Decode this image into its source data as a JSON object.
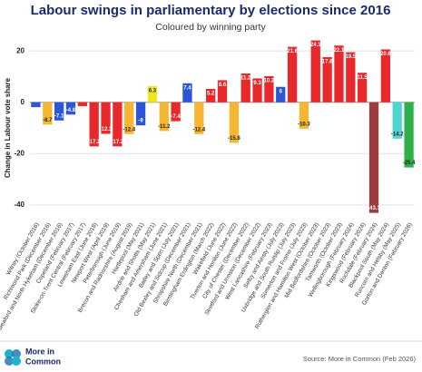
{
  "chart_data": {
    "type": "bar",
    "title": "Labour swings in parliamentary by elections since 2016",
    "subtitle": "Coloured by winning party",
    "y_label": "Change in Labour vote share",
    "source": "Source: More in Common (Feb 2026)",
    "logo": [
      "More in",
      "Common"
    ],
    "categories": [
      "Witney (October 2016)",
      "Richmond Park (December 2016)",
      "Sleaford and North Hykeham (December 2016)",
      "Copeland (February 2017)",
      "Stoke-on-Trent Central (February 2017)",
      "Lewisham East (June 2018)",
      "Newport West (April 2019)",
      "Peterborough (June 2019)",
      "Brecon and Radnorshire (August 2019)",
      "Hartlepool (May 2021)",
      "Airdrie and Shotts (May 2021)",
      "Chesham and Amersham (June 2021)",
      "Batley and Spen (July 2021)",
      "Old Bexley and Sidcup (December 2021)",
      "Shropshire North (December 2021)",
      "Birmingham Erdington (March 2022)",
      "Wakefield (June 2022)",
      "Tiverton and Honiton (June 2022)",
      "City of Chester (December 2022)",
      "Stretford and Urmston (December 2022)",
      "West Lancashire (February 2023)",
      "Selby and Ainsty (July 2023)",
      "Uxbridge and South Ruislip (July 2023)",
      "Somerton and Frome (July 2023)",
      "Rutherglen and Hamilton West (October 2023)",
      "Mid Bedfordshire (October 2023)",
      "Tamworth (October 2023)",
      "Wellingborough (February 2024)",
      "Kingswood (February 2024)",
      "Rochdale (February 2024)",
      "Blackpool South (May 2024)",
      "Runcorn and Helsby (May 2025)",
      "Gorton and Denton (February 2026)"
    ],
    "values": [
      -1.9,
      -8.7,
      -7.1,
      -4.8,
      -1.5,
      -17.2,
      -12.3,
      -17.2,
      -12.4,
      -9,
      6.3,
      -11.2,
      -7.4,
      7.4,
      -12.4,
      5.2,
      8.6,
      -15.8,
      11.2,
      9.3,
      10.2,
      6,
      21.6,
      -10.3,
      24.1,
      17.6,
      22.1,
      19.5,
      11.5,
      -43.1,
      20.6,
      -14.2,
      -25.4
    ],
    "value_labels": [
      null,
      "-8.7",
      "-7.1",
      "-4.8",
      null,
      "-17.2",
      "-12.3",
      "-17.2",
      "-12.4",
      "-9",
      "6.3",
      "-11.2",
      "-7.4",
      "7.4",
      "-12.4",
      "5.2",
      "8.6",
      "-15.8",
      "11.2",
      "9.3",
      "10.2",
      "6",
      "21.6",
      "-10.3",
      "24.1",
      "17.6",
      "22.1",
      "19.5",
      "11.5",
      "-43.1",
      "20.6",
      "-14.2",
      "-25.4"
    ],
    "colors": [
      "#2c55d8",
      "#f5b731",
      "#2c55d8",
      "#2c55d8",
      "#e8282b",
      "#e8282b",
      "#e8282b",
      "#e8282b",
      "#f5b731",
      "#2c55d8",
      "#f2e51a",
      "#f5b731",
      "#e8282b",
      "#2c55d8",
      "#f5b731",
      "#e8282b",
      "#e8282b",
      "#f5b731",
      "#e8282b",
      "#e8282b",
      "#e8282b",
      "#2c55d8",
      "#e8282b",
      "#f5b731",
      "#e8282b",
      "#e8282b",
      "#e8282b",
      "#e8282b",
      "#e8282b",
      "#9e3b3b",
      "#e8282b",
      "#4dd6d0",
      "#2bb34a"
    ],
    "ylim": [
      -45,
      25
    ],
    "yticks": [
      -40,
      -20,
      0,
      20
    ],
    "grid": true
  }
}
